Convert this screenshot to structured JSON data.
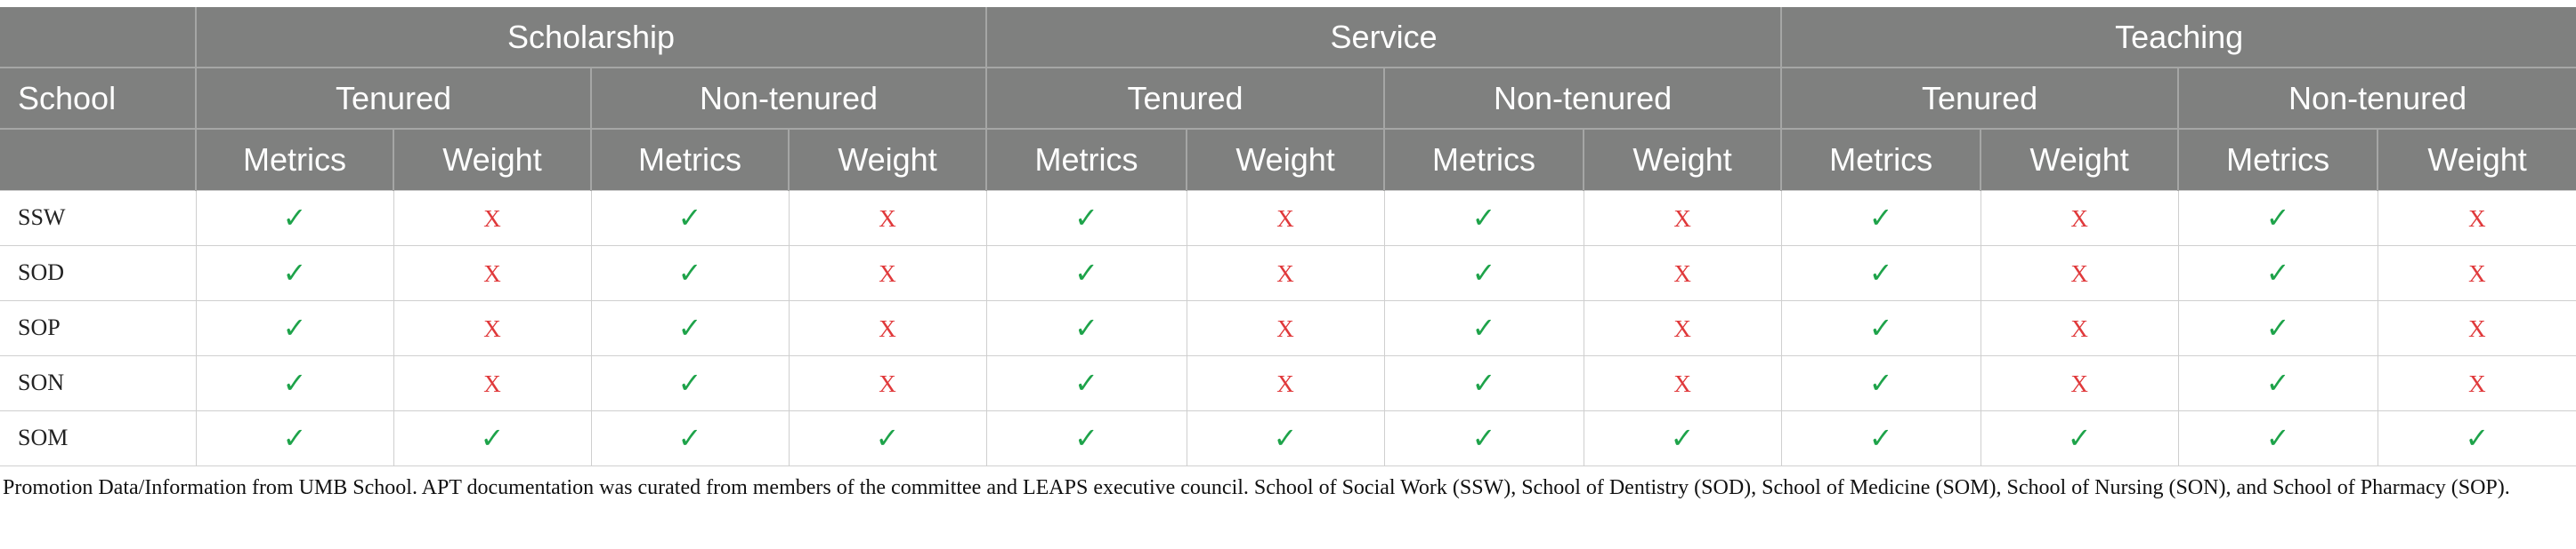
{
  "table": {
    "school_header": "School",
    "categories": [
      "Scholarship",
      "Service",
      "Teaching"
    ],
    "tenure_types": [
      "Tenured",
      "Non-tenured"
    ],
    "sub_columns": [
      "Metrics",
      "Weight"
    ],
    "symbols": {
      "yes": "✓",
      "no": "X"
    },
    "colors": {
      "header_bg": "#7f807f",
      "yes": "#1ea34a",
      "no": "#e0393b"
    },
    "rows": [
      {
        "school": "SSW",
        "cells": [
          "yes",
          "no",
          "yes",
          "no",
          "yes",
          "no",
          "yes",
          "no",
          "yes",
          "no",
          "yes",
          "no"
        ]
      },
      {
        "school": "SOD",
        "cells": [
          "yes",
          "no",
          "yes",
          "no",
          "yes",
          "no",
          "yes",
          "no",
          "yes",
          "no",
          "yes",
          "no"
        ]
      },
      {
        "school": "SOP",
        "cells": [
          "yes",
          "no",
          "yes",
          "no",
          "yes",
          "no",
          "yes",
          "no",
          "yes",
          "no",
          "yes",
          "no"
        ]
      },
      {
        "school": "SON",
        "cells": [
          "yes",
          "no",
          "yes",
          "no",
          "yes",
          "no",
          "yes",
          "no",
          "yes",
          "no",
          "yes",
          "no"
        ]
      },
      {
        "school": "SOM",
        "cells": [
          "yes",
          "yes",
          "yes",
          "yes",
          "yes",
          "yes",
          "yes",
          "yes",
          "yes",
          "yes",
          "yes",
          "yes"
        ]
      }
    ]
  },
  "footnote": "Promotion Data/Information from UMB School. APT documentation was curated from members of the committee and LEAPS executive council. School of Social Work (SSW), School of Dentistry (SOD), School of Medicine (SOM), School of Nursing (SON), and School of Pharmacy (SOP)."
}
